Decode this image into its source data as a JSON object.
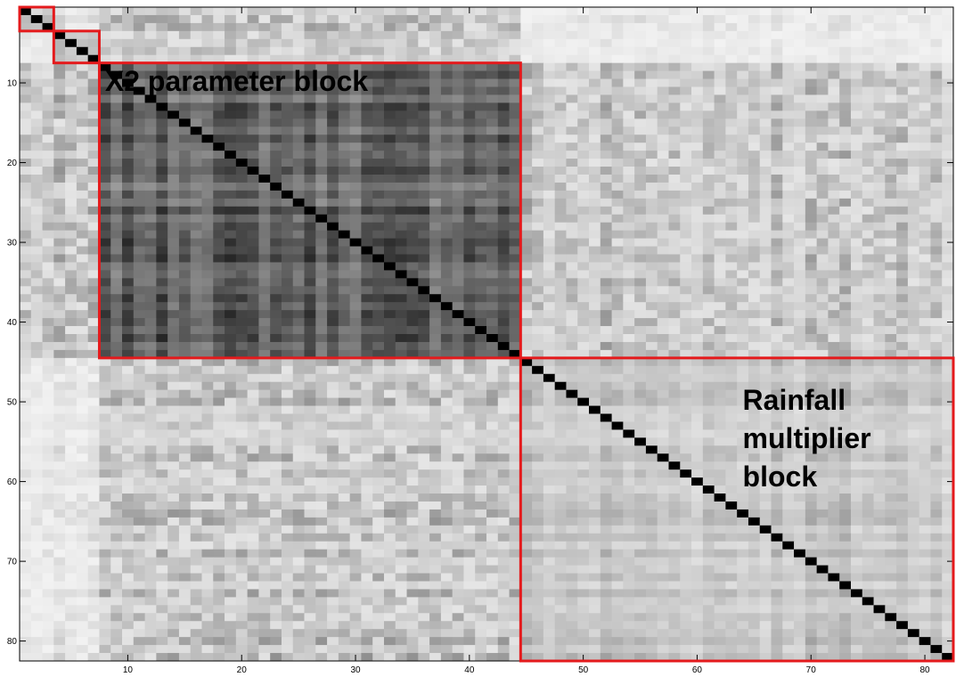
{
  "chart_data": {
    "type": "heatmap",
    "title": "",
    "xlabel": "",
    "ylabel": "",
    "n": 82,
    "xlim": [
      0.5,
      82.5
    ],
    "ylim": [
      0.5,
      82.5
    ],
    "x_ticks": [
      10,
      20,
      30,
      40,
      50,
      60,
      70,
      80
    ],
    "y_ticks": [
      10,
      20,
      30,
      40,
      50,
      60,
      70,
      80
    ],
    "y_reversed": true,
    "colormap": "gray-reversed",
    "value_range": [
      0,
      1
    ],
    "diagonal_value": 1,
    "blocks": [
      {
        "name": "block-a",
        "range": [
          1,
          3
        ],
        "border_color": "#e41a1c"
      },
      {
        "name": "block-b",
        "range": [
          4,
          7
        ],
        "border_color": "#e41a1c"
      },
      {
        "name": "x2-parameter-block",
        "range": [
          8,
          44
        ],
        "border_color": "#e41a1c"
      },
      {
        "name": "rainfall-multiplier-block",
        "range": [
          45,
          82
        ],
        "border_color": "#e41a1c"
      }
    ],
    "annotations": [
      {
        "id": "x2",
        "lines": [
          "X2 parameter block"
        ],
        "x": 8,
        "y": 11
      },
      {
        "id": "rain",
        "lines": [
          "Rainfall",
          "multiplier",
          "block"
        ],
        "x": 64,
        "y": 51
      }
    ]
  }
}
